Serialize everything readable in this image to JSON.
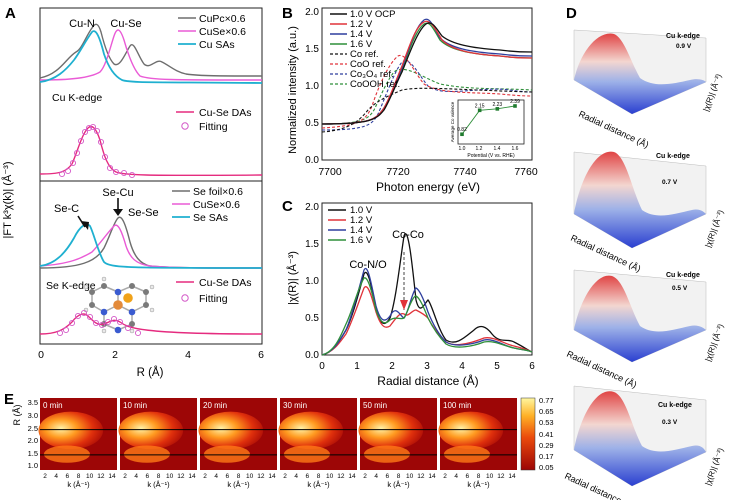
{
  "figure": {
    "panelA": {
      "label": "A",
      "ylabel": "|FT k³χ(k)| (Å⁻³)",
      "xlabel": "R (Å)",
      "xlim": [
        0,
        6
      ],
      "xticks": [
        "0",
        "2",
        "4",
        "6"
      ],
      "top": {
        "peak_labels": [
          "Cu-N",
          "Cu-Se"
        ],
        "legend": [
          "CuPc×0.6",
          "CuSe×0.6",
          "Cu SAs"
        ],
        "edge_label": "Cu K-edge",
        "fit_legend": [
          "Cu-Se DAs",
          "Fitting"
        ]
      },
      "bottom": {
        "peak_labels": [
          "Se-Cu",
          "Se-C",
          "Se-Se"
        ],
        "legend": [
          "Se foil×0.6",
          "CuSe×0.6",
          "Se SAs"
        ],
        "edge_label": "Se K-edge",
        "fit_legend": [
          "Cu-Se DAs",
          "Fitting"
        ]
      }
    },
    "panelB": {
      "label": "B",
      "ylabel": "Normalized intensity (a.u.)",
      "xlabel": "Photon energy (eV)",
      "xticks": [
        "7700",
        "7720",
        "7740",
        "7760"
      ],
      "yticks": [
        "0.0",
        "0.5",
        "1.0",
        "1.5",
        "2.0"
      ],
      "legend": [
        "1.0 V OCP",
        "1.2 V",
        "1.4 V",
        "1.6 V",
        "Co ref.",
        "CoO ref.",
        "Co₃O₄ ref.",
        "CoOOH ref."
      ],
      "inset": {
        "xlabel": "Potential (V vs. RHE)",
        "ylabel": "Average Co valence",
        "xticks": [
          "1.0",
          "1.2",
          "1.4",
          "1.6"
        ],
        "x": [
          1.0,
          1.2,
          1.4,
          1.6
        ],
        "y": [
          0.82,
          2.15,
          2.23,
          2.39
        ],
        "value_labels": [
          "0.82",
          "2.15",
          "2.23",
          "2.39"
        ]
      }
    },
    "panelC": {
      "label": "C",
      "ylabel": "|χ(R)| (Å⁻³)",
      "xlabel": "Radial distance (Å)",
      "xticks": [
        "0",
        "1",
        "2",
        "3",
        "4",
        "5",
        "6"
      ],
      "yticks": [
        "0.0",
        "0.5",
        "1.0",
        "1.5",
        "2.0"
      ],
      "legend": [
        "1.0 V",
        "1.2 V",
        "1.4 V",
        "1.6 V"
      ],
      "annotations": [
        "Co-Co",
        "Co-N/O"
      ]
    },
    "panelD": {
      "label": "D",
      "edge_label": "Cu k-edge",
      "potentials": [
        "0.9 V",
        "0.7 V",
        "0.5 V",
        "0.3 V"
      ],
      "xlabel": "Radial distance (Å)",
      "zlabel": "|χ(R)| (Å⁻³)"
    },
    "panelE": {
      "label": "E",
      "ylabel": "R (Å)",
      "xlabel": "k (Å⁻¹)",
      "times": [
        "0 min",
        "10 min",
        "20 min",
        "30 min",
        "50 min",
        "100 min"
      ],
      "yticks": [
        "1.0",
        "1.5",
        "2.0",
        "2.5",
        "3.0",
        "3.5"
      ],
      "xticks": [
        "2",
        "4",
        "6",
        "8",
        "10",
        "12",
        "14"
      ],
      "colorbar": [
        "0.77",
        "0.65",
        "0.53",
        "0.41",
        "0.29",
        "0.17",
        "0.05"
      ]
    },
    "colors": {
      "gray": "#6e6e6e",
      "pink": "#ea5bd6",
      "cyan": "#1fb0d0",
      "fit": "#e52b7f",
      "v10": "#111111",
      "v12": "#e0333a",
      "v14": "#2f3f9e",
      "v16": "#2f8f3a"
    }
  }
}
